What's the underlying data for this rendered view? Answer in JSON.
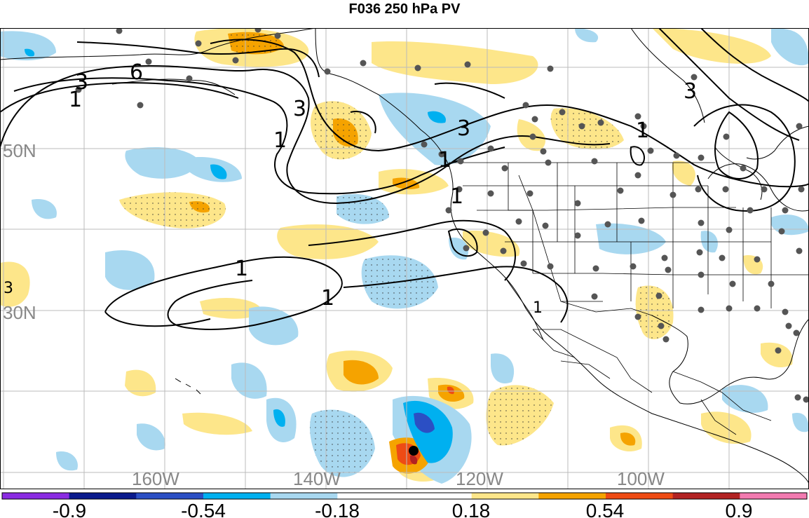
{
  "title": "F036 250 hPa PV",
  "map": {
    "latitude_labels": [
      {
        "text": "50N"
      },
      {
        "text": "30N"
      }
    ],
    "longitude_labels": [
      {
        "text": "160W"
      },
      {
        "text": "140W"
      },
      {
        "text": "120W"
      },
      {
        "text": "100W"
      }
    ],
    "contour_labels": [
      {
        "text": "3"
      },
      {
        "text": "1"
      },
      {
        "text": "6"
      },
      {
        "text": "3"
      },
      {
        "text": "1"
      },
      {
        "text": "3"
      },
      {
        "text": "1"
      },
      {
        "text": "1"
      },
      {
        "text": "3"
      },
      {
        "text": "1"
      },
      {
        "text": "1"
      },
      {
        "text": "1"
      },
      {
        "text": "1"
      },
      {
        "text": "3"
      }
    ],
    "center_marker": "black-dot"
  },
  "colorbar": {
    "tick_labels": [
      "-0.9",
      "-0.54",
      "-0.18",
      "0.18",
      "0.54",
      "0.9"
    ],
    "colors": [
      "#8a2be2",
      "#0a1a8c",
      "#2b4fc4",
      "#00b0f0",
      "#a8d8f0",
      "#ffffff",
      "#ffffff",
      "#fde68a",
      "#f5a300",
      "#ee4b14",
      "#b22222",
      "#f27ab0"
    ]
  },
  "colors": {
    "land_outline": "#000000",
    "grid": "#bbbbbb",
    "label_gray": "#888888",
    "station_dot": "#555555"
  }
}
